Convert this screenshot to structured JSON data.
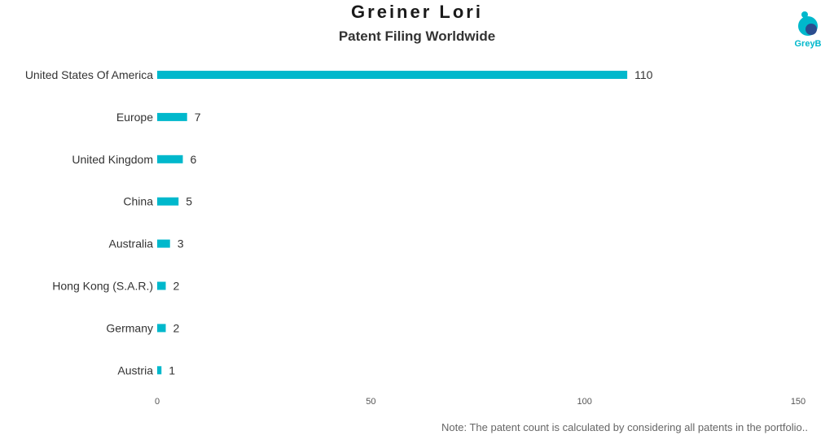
{
  "header": {
    "title": "Greiner Lori",
    "subtitle": "Patent Filing Worldwide"
  },
  "logo": {
    "text": "GreyB",
    "icon": "greyb-logo-icon"
  },
  "footer": {
    "note": "Note: The patent count is calculated by considering all patents in the portfolio.."
  },
  "colors": {
    "bar": "#00b8cc",
    "text": "#333333",
    "accent": "#00b8cc"
  },
  "chart_data": {
    "type": "bar",
    "orientation": "horizontal",
    "title": "Greiner Lori",
    "subtitle": "Patent Filing Worldwide",
    "categories": [
      "United States Of America",
      "Europe",
      "United Kingdom",
      "China",
      "Australia",
      "Hong Kong (S.A.R.)",
      "Germany",
      "Austria"
    ],
    "values": [
      110,
      7,
      6,
      5,
      3,
      2,
      2,
      1
    ],
    "xlim": [
      0,
      150
    ],
    "xticks": [
      0,
      50,
      100,
      150
    ],
    "xlabel": "",
    "ylabel": "",
    "grid": false,
    "legend": "none",
    "data_labels": true
  }
}
